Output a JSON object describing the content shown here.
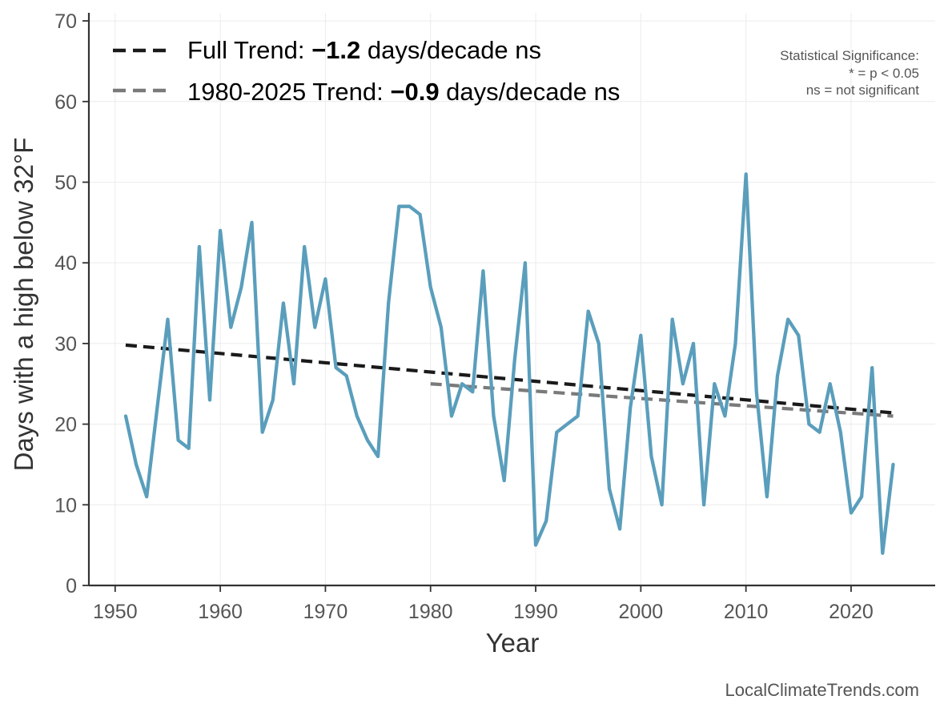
{
  "chart_data": {
    "type": "line",
    "xlabel": "Year",
    "ylabel": "Days with a high below 32°F",
    "xlim": [
      1947.5,
      2028
    ],
    "ylim": [
      0,
      71
    ],
    "x_ticks": [
      1950,
      1960,
      1970,
      1980,
      1990,
      2000,
      2010,
      2020
    ],
    "y_ticks": [
      0,
      10,
      20,
      30,
      40,
      50,
      60,
      70
    ],
    "grid": true,
    "legend_position": "top-left",
    "series": [
      {
        "color": "#5a9ebc",
        "x": [
          1951,
          1952,
          1953,
          1954,
          1955,
          1956,
          1957,
          1958,
          1959,
          1960,
          1961,
          1962,
          1963,
          1964,
          1965,
          1966,
          1967,
          1968,
          1969,
          1970,
          1971,
          1972,
          1973,
          1974,
          1975,
          1976,
          1977,
          1978,
          1979,
          1980,
          1981,
          1982,
          1983,
          1984,
          1985,
          1986,
          1987,
          1988,
          1989,
          1990,
          1991,
          1992,
          1993,
          1994,
          1995,
          1996,
          1997,
          1998,
          1999,
          2000,
          2001,
          2002,
          2003,
          2004,
          2005,
          2006,
          2007,
          2008,
          2009,
          2010,
          2011,
          2012,
          2013,
          2014,
          2015,
          2016,
          2017,
          2018,
          2019,
          2020,
          2021,
          2022,
          2023,
          2024
        ],
        "values": [
          21,
          15,
          11,
          22,
          33,
          18,
          17,
          42,
          23,
          44,
          32,
          37,
          45,
          19,
          23,
          35,
          25,
          42,
          32,
          38,
          27,
          26,
          21,
          18,
          16,
          35,
          47,
          47,
          46,
          37,
          32,
          21,
          25,
          24,
          39,
          21,
          13,
          28,
          40,
          5,
          8,
          19,
          20,
          21,
          34,
          30,
          12,
          7,
          22,
          31,
          16,
          10,
          33,
          25,
          30,
          10,
          25,
          21,
          30,
          51,
          24,
          11,
          26,
          33,
          31,
          20,
          19,
          25,
          19,
          9,
          11,
          27,
          4,
          15
        ]
      }
    ],
    "trends": [
      {
        "label_prefix": "Full Trend: ",
        "slope_text": "−1.2",
        "label_suffix": " days/decade ns",
        "color": "#1a1a1a",
        "x": [
          1951,
          2024
        ],
        "values": [
          29.8,
          21.4
        ]
      },
      {
        "label_prefix": "1980-2025 Trend: ",
        "slope_text": "−0.9",
        "label_suffix": " days/decade ns",
        "color": "#7a7a7a",
        "x": [
          1980,
          2024
        ],
        "values": [
          25.0,
          21.0
        ]
      }
    ],
    "significance_note": [
      "Statistical Significance:",
      "* = p < 0.05",
      "ns = not significant"
    ],
    "source": "LocalClimateTrends.com"
  }
}
